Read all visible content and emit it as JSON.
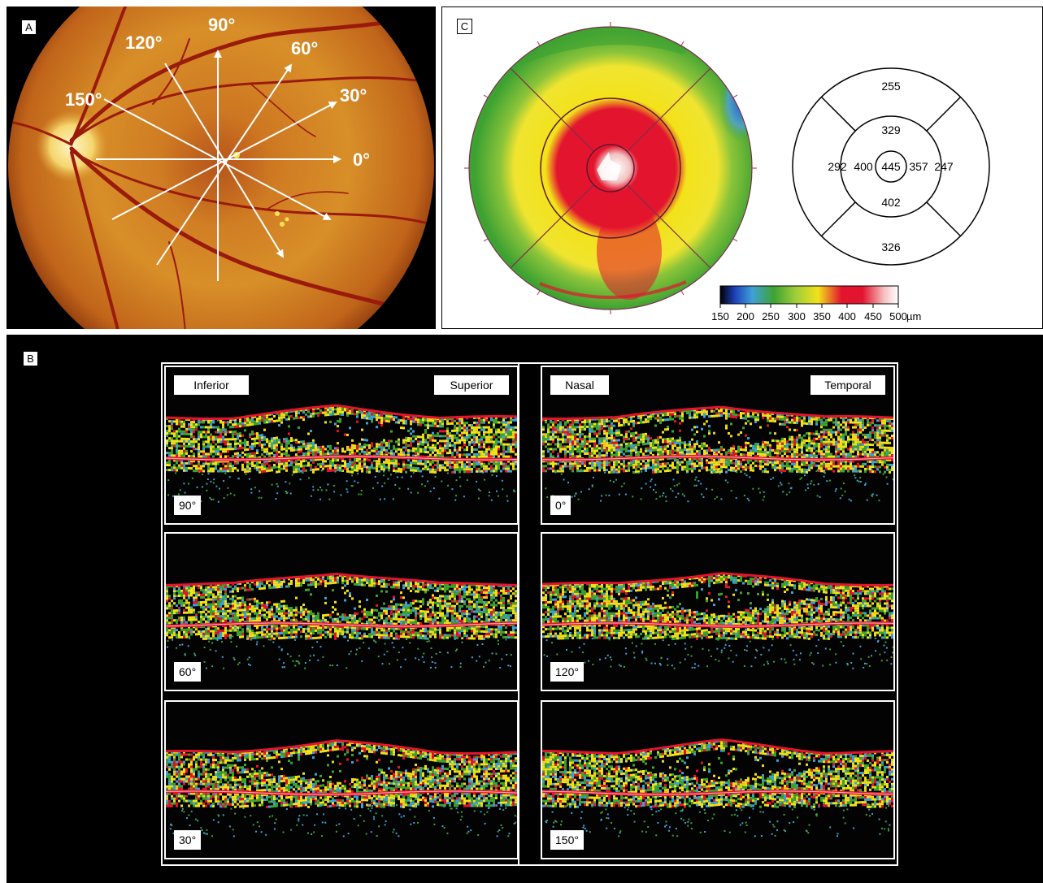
{
  "panels": {
    "a": "A",
    "b": "B",
    "c": "C"
  },
  "fundus": {
    "angle_labels": [
      "90°",
      "120°",
      "60°",
      "150°",
      "30°",
      "0°"
    ]
  },
  "thickness_map": {
    "sectors": {
      "outer_superior": "255",
      "outer_nasal": "292",
      "outer_temporal": "247",
      "outer_inferior": "326",
      "inner_superior": "329",
      "inner_nasal": "400",
      "center": "445",
      "inner_temporal": "357",
      "inner_inferior": "402"
    },
    "scale_ticks": [
      "150",
      "200",
      "250",
      "300",
      "350",
      "400",
      "450",
      "500"
    ],
    "scale_unit": "µm",
    "colors": {
      "blue": "#1e5fd8",
      "green": "#3da232",
      "yellow": "#f2e21a",
      "red": "#e3152e",
      "white": "#ffffff"
    }
  },
  "scans": {
    "left_header": {
      "start": "Inferior",
      "end": "Superior"
    },
    "right_header": {
      "start": "Nasal",
      "end": "Temporal"
    },
    "items": [
      {
        "angle": "90°"
      },
      {
        "angle": "0°"
      },
      {
        "angle": "60°"
      },
      {
        "angle": "120°"
      },
      {
        "angle": "30°"
      },
      {
        "angle": "150°"
      }
    ]
  }
}
